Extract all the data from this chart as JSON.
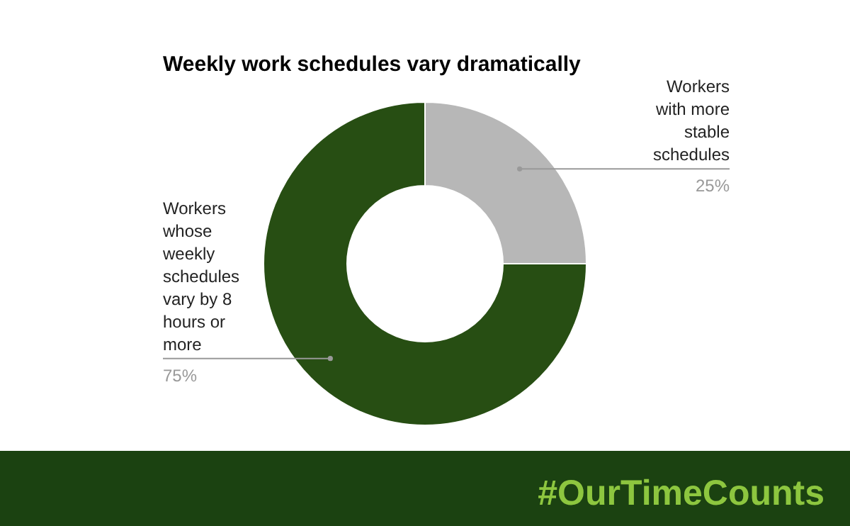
{
  "chart_data": {
    "type": "donut",
    "title": "Weekly work schedules vary dramatically",
    "categories": [
      "Workers with more stable schedules",
      "Workers whose weekly schedules vary by 8 hours or more"
    ],
    "values": [
      25,
      75
    ],
    "colors": [
      "#b7b7b7",
      "#274e13"
    ],
    "value_labels": [
      "25%",
      "75%"
    ],
    "annotations": [
      "#OurTimeCounts"
    ]
  }
}
